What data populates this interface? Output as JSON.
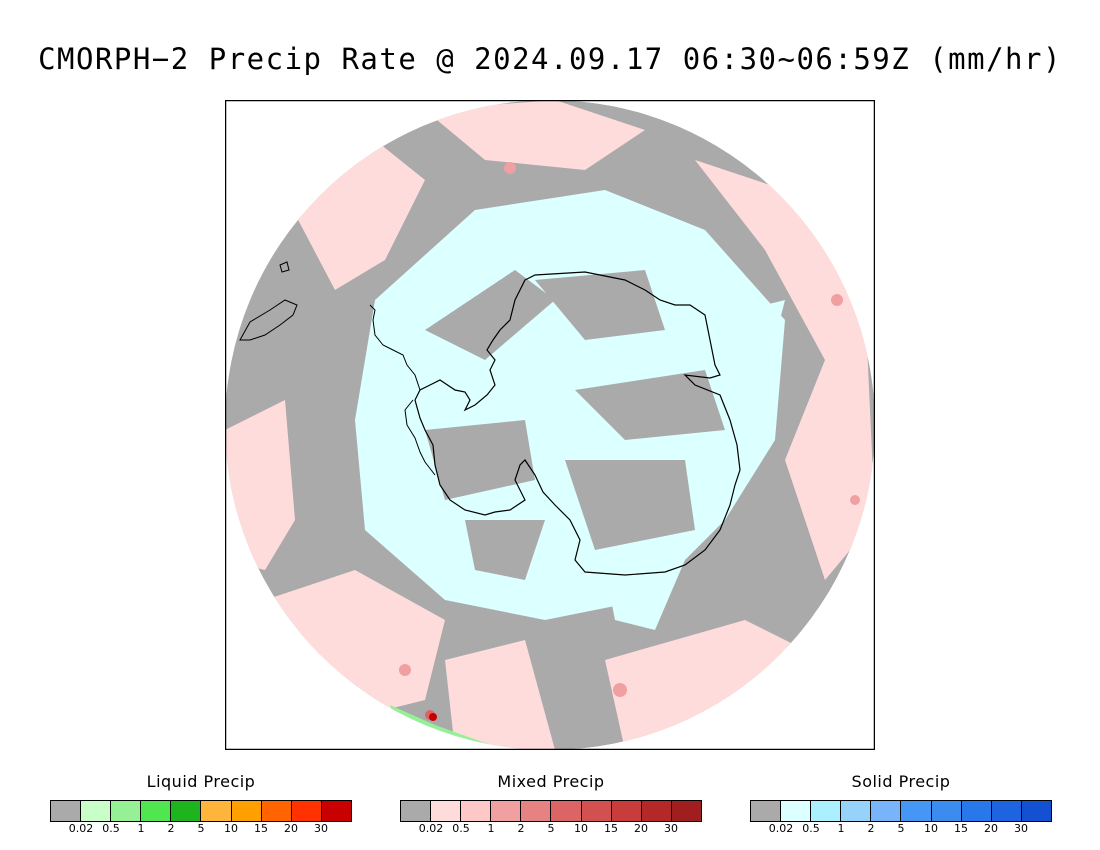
{
  "title": "CMORPH−2 Precip Rate @ 2024.09.17 06:30~06:59Z (mm/hr)",
  "colors": {
    "no_precip": "#aaaaaa",
    "mixed_light": "#ffdcdc",
    "solid_light": "#dcffff",
    "coast": "#000000",
    "frame": "#000000"
  },
  "legends": [
    {
      "label": "Liquid Precip",
      "swatches": [
        "#aaaaaa",
        "#c8ffc8",
        "#96f096",
        "#50e650",
        "#1eb41e",
        "#ffb43c",
        "#ffa000",
        "#ff6400",
        "#ff3200",
        "#c80000"
      ],
      "ticks": [
        "0.02",
        "0.5",
        "1",
        "2",
        "5",
        "10",
        "15",
        "20",
        "30"
      ]
    },
    {
      "label": "Mixed Precip",
      "swatches": [
        "#aaaaaa",
        "#ffdcdc",
        "#ffc8c8",
        "#f0a0a0",
        "#e68282",
        "#dc6464",
        "#d25050",
        "#c83c3c",
        "#b42828",
        "#a01e1e"
      ],
      "ticks": [
        "0.02",
        "0.5",
        "1",
        "2",
        "5",
        "10",
        "15",
        "20",
        "30"
      ]
    },
    {
      "label": "Solid Precip",
      "swatches": [
        "#aaaaaa",
        "#dcffff",
        "#aaf0ff",
        "#96d2fa",
        "#78b4fa",
        "#4696f5",
        "#3c8cf0",
        "#2878eb",
        "#1e64e1",
        "#1450d2"
      ],
      "ticks": [
        "0.02",
        "0.5",
        "1",
        "2",
        "5",
        "10",
        "15",
        "20",
        "30"
      ]
    }
  ]
}
